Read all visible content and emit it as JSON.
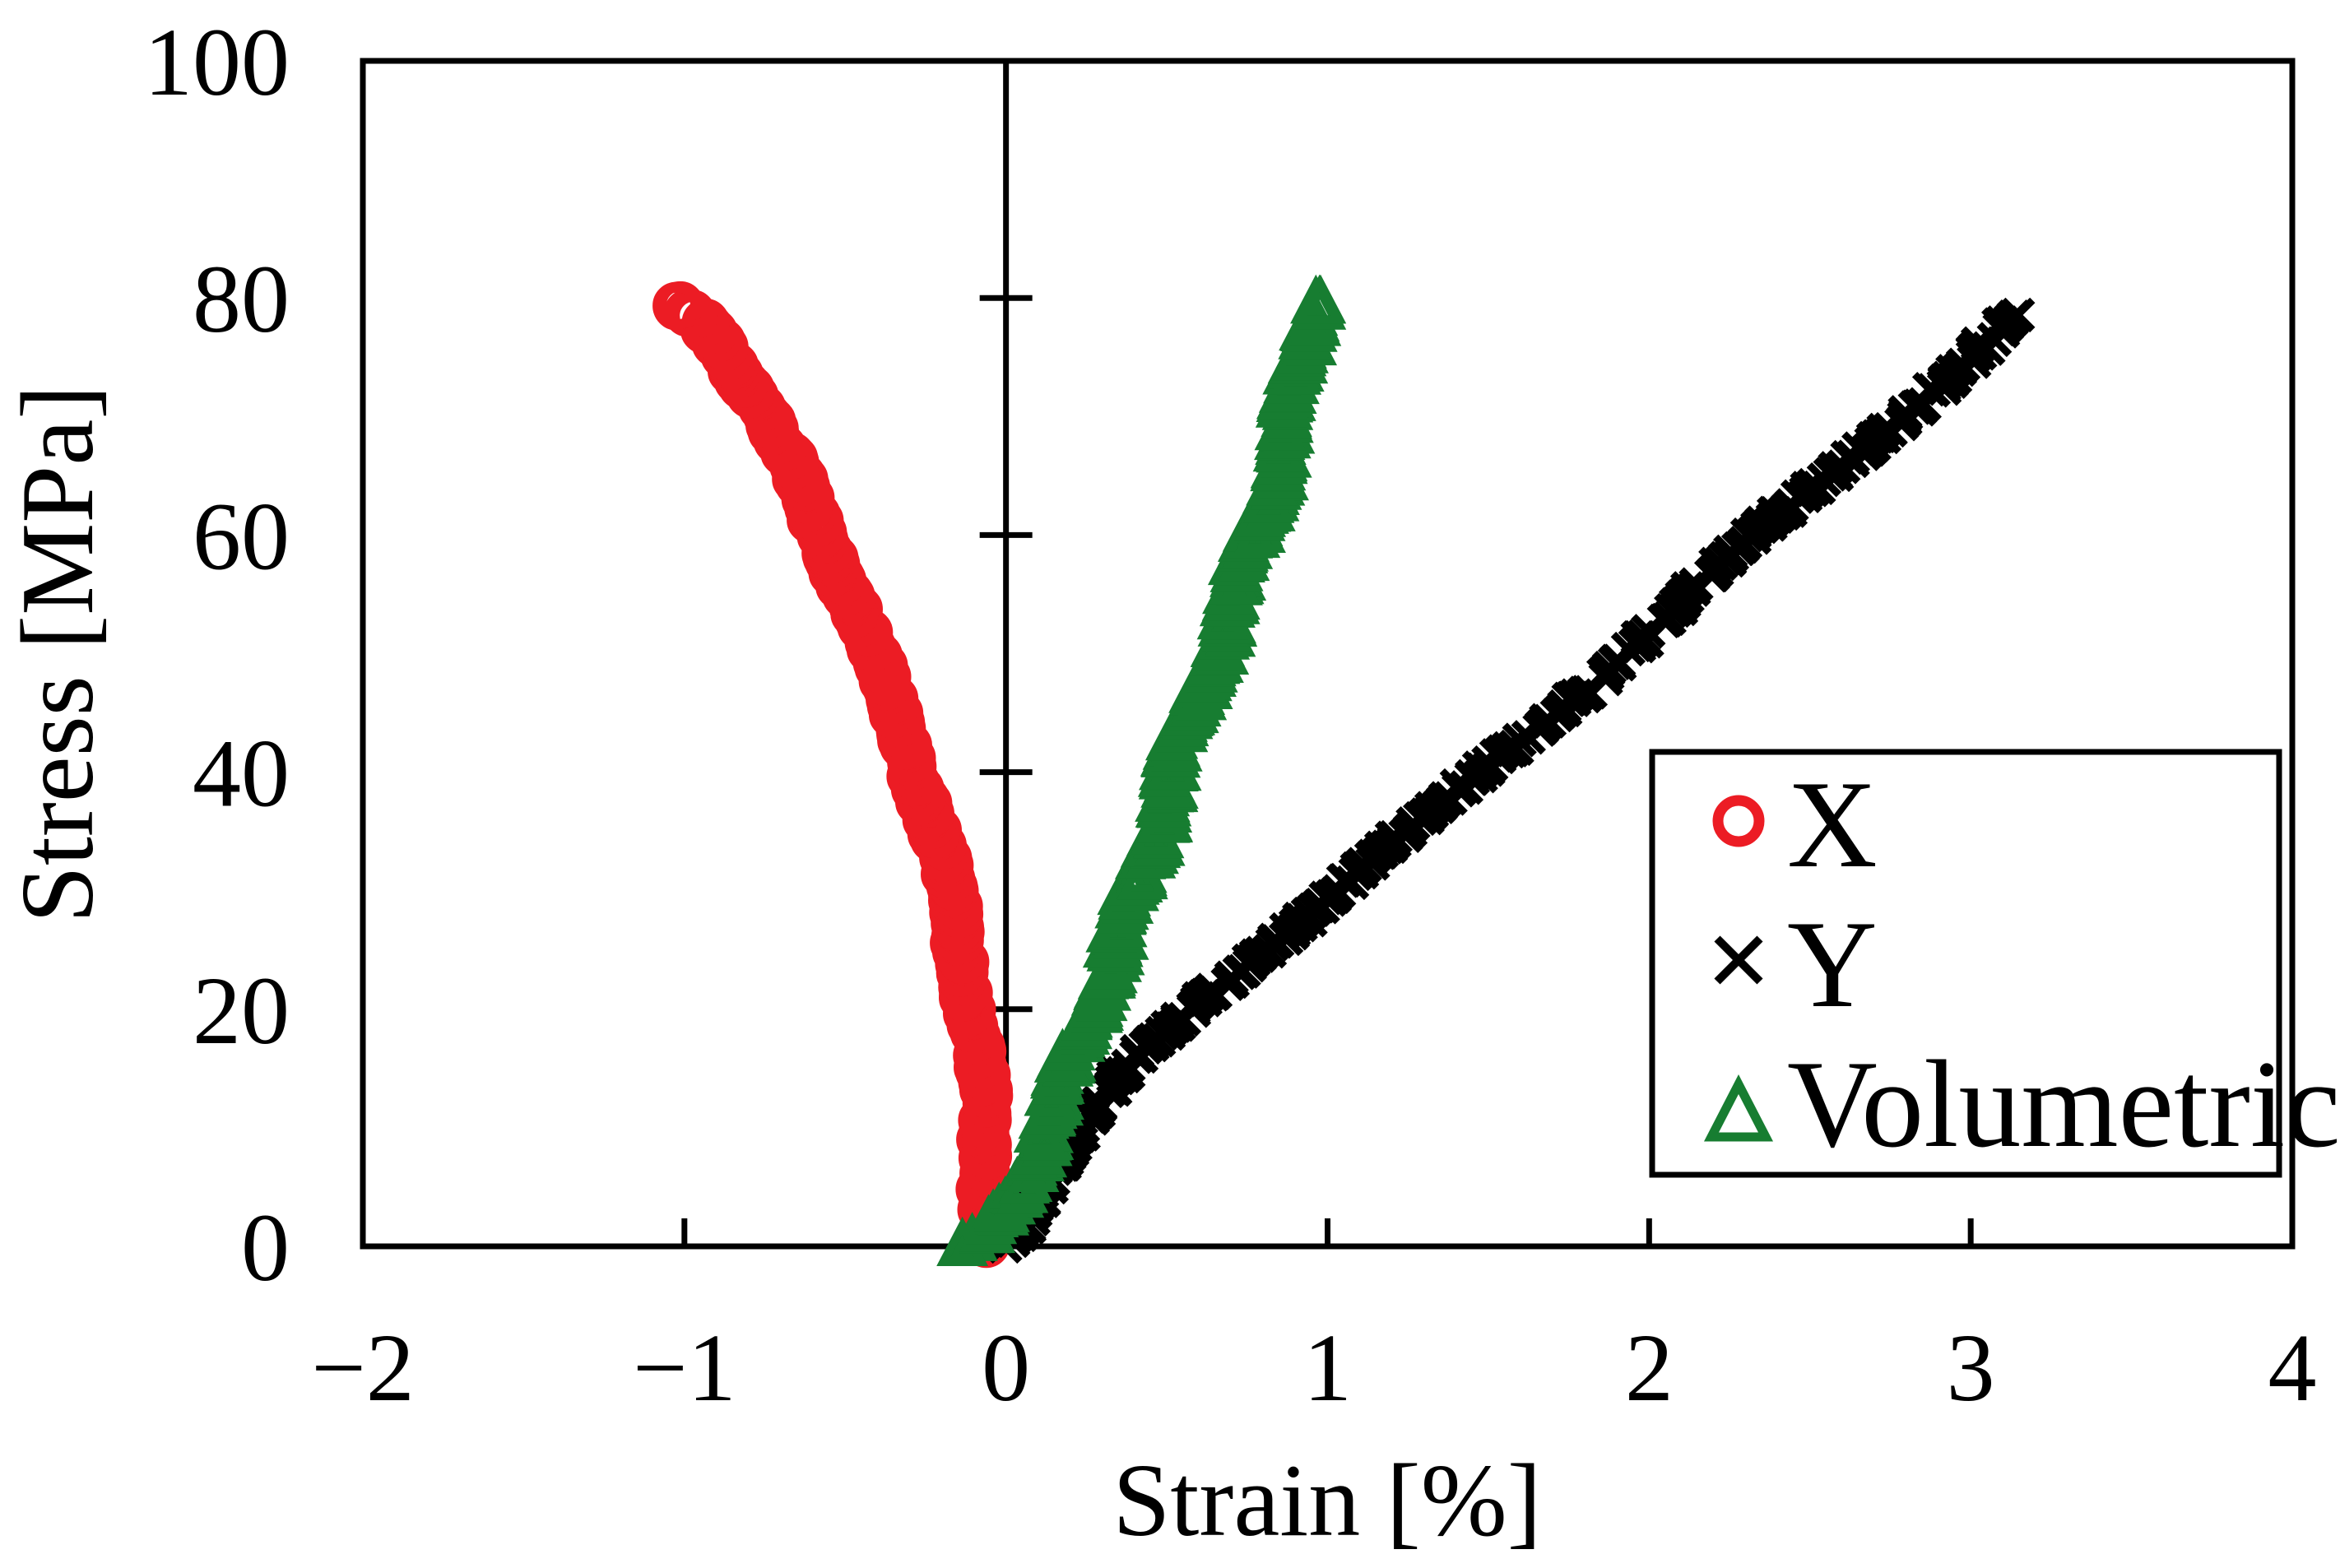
{
  "chart_data": {
    "type": "scatter",
    "title": "",
    "xlabel": "Strain [%]",
    "ylabel": "Stress [MPa]",
    "xlim": [
      -2,
      4
    ],
    "ylim": [
      0,
      100
    ],
    "grid": false,
    "x_axis": {
      "tick_values": [
        -2,
        -1,
        0,
        1,
        2,
        3,
        4
      ],
      "tick_labels": [
        "−2",
        "−1",
        "0",
        "1",
        "2",
        "3",
        "4"
      ],
      "ticks_with_marks": [
        -1,
        1,
        2,
        3
      ]
    },
    "y_axis": {
      "tick_values": [
        0,
        20,
        40,
        60,
        80,
        100
      ],
      "tick_labels": [
        "0",
        "20",
        "40",
        "60",
        "80",
        "100"
      ],
      "cross_ticks_on_zero_line": [
        20,
        40,
        60,
        80
      ]
    },
    "legend": [
      {
        "label": "X",
        "marker": "open-circle",
        "color": "#ec1c24"
      },
      {
        "label": "Y",
        "marker": "x-cross",
        "color": "#000000"
      },
      {
        "label": "Volumetric",
        "marker": "open-triangle",
        "color": "#177d31"
      }
    ],
    "series": [
      {
        "name": "X",
        "marker": "open-circle",
        "color": "#ec1c24",
        "points_strain_stress": [
          [
            -0.05,
            0
          ],
          [
            -0.055,
            4
          ],
          [
            -0.063,
            8
          ],
          [
            -0.073,
            12
          ],
          [
            -0.087,
            16
          ],
          [
            -0.106,
            20
          ],
          [
            -0.13,
            24
          ],
          [
            -0.16,
            28
          ],
          [
            -0.196,
            32
          ],
          [
            -0.236,
            36
          ],
          [
            -0.28,
            40
          ],
          [
            -0.33,
            44
          ],
          [
            -0.385,
            48
          ],
          [
            -0.442,
            52
          ],
          [
            -0.502,
            56
          ],
          [
            -0.566,
            60
          ],
          [
            -0.636,
            64
          ],
          [
            -0.712,
            68
          ],
          [
            -0.792,
            72
          ],
          [
            -0.876,
            76
          ],
          [
            -0.94,
            78
          ],
          [
            -1.02,
            79.5
          ]
        ]
      },
      {
        "name": "Y",
        "marker": "x-cross",
        "color": "#000000",
        "points_strain_stress": [
          [
            0.0,
            0
          ],
          [
            0.08,
            4
          ],
          [
            0.18,
            8
          ],
          [
            0.3,
            12
          ],
          [
            0.43,
            16
          ],
          [
            0.57,
            20
          ],
          [
            0.74,
            24
          ],
          [
            0.93,
            28
          ],
          [
            1.12,
            32
          ],
          [
            1.31,
            36
          ],
          [
            1.49,
            40
          ],
          [
            1.66,
            44
          ],
          [
            1.83,
            48
          ],
          [
            2.0,
            52
          ],
          [
            2.17,
            56
          ],
          [
            2.34,
            60
          ],
          [
            2.52,
            64
          ],
          [
            2.69,
            68
          ],
          [
            2.86,
            72
          ],
          [
            3.0,
            75
          ],
          [
            3.1,
            77.5
          ],
          [
            3.17,
            78.8
          ]
        ]
      },
      {
        "name": "Volumetric",
        "marker": "open-triangle",
        "color": "#177d31",
        "points_strain_stress": [
          [
            -0.12,
            0
          ],
          [
            -0.05,
            1
          ],
          [
            0.02,
            4
          ],
          [
            0.09,
            8
          ],
          [
            0.15,
            12
          ],
          [
            0.21,
            16
          ],
          [
            0.262,
            20
          ],
          [
            0.32,
            24
          ],
          [
            0.376,
            28
          ],
          [
            0.43,
            32
          ],
          [
            0.47,
            36
          ],
          [
            0.512,
            40
          ],
          [
            0.566,
            44
          ],
          [
            0.62,
            48
          ],
          [
            0.672,
            52
          ],
          [
            0.722,
            56
          ],
          [
            0.776,
            60
          ],
          [
            0.822,
            64
          ],
          [
            0.86,
            68
          ],
          [
            0.896,
            72
          ],
          [
            0.926,
            76
          ],
          [
            0.948,
            79.5
          ]
        ]
      }
    ]
  }
}
